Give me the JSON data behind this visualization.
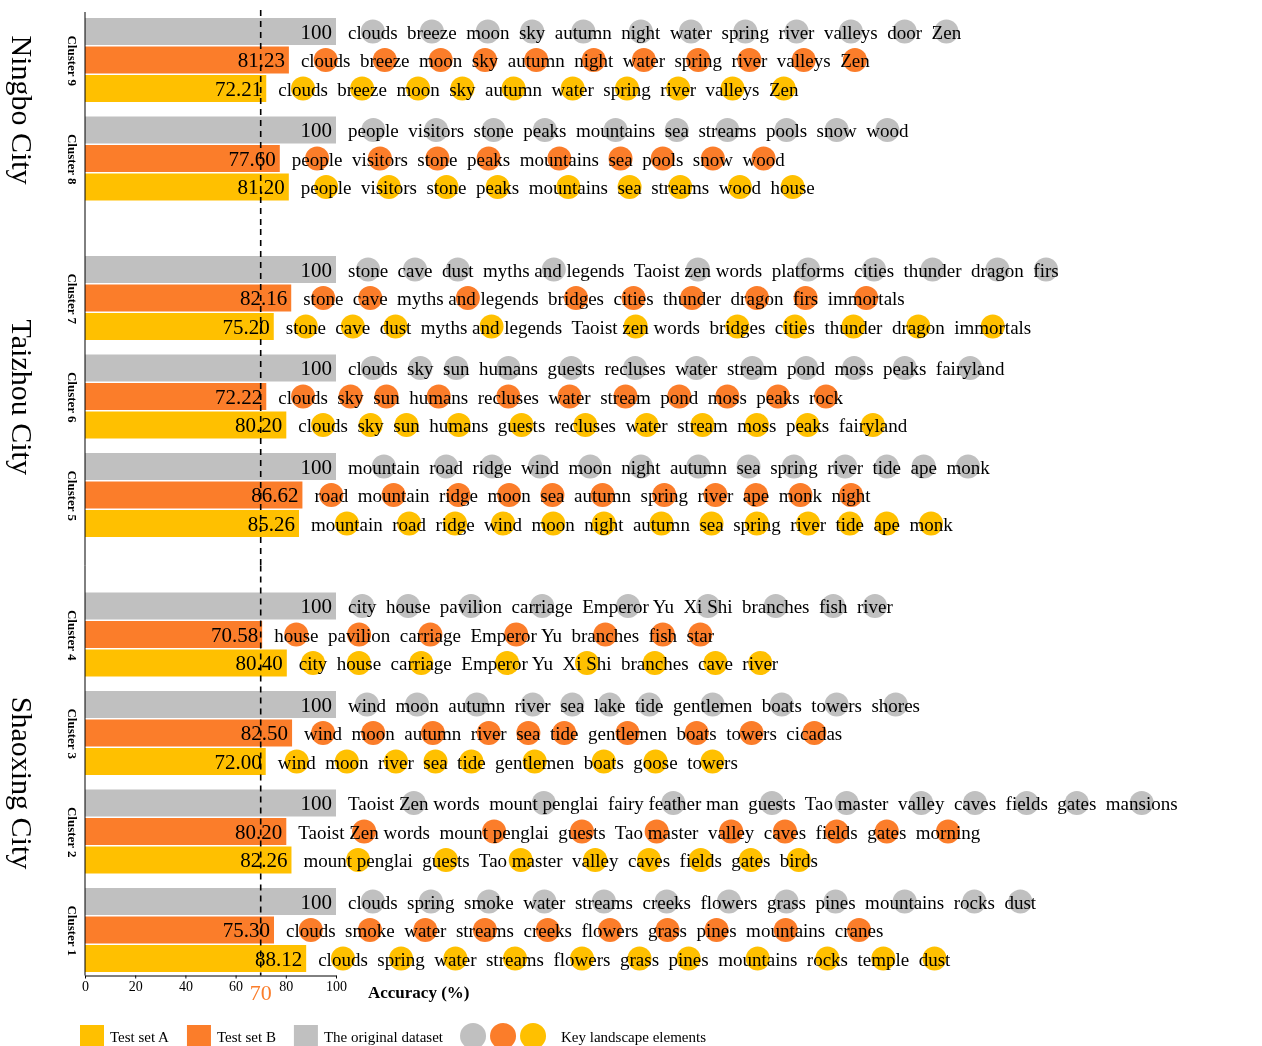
{
  "chart_data": [
    {
      "type": "bar",
      "orientation": "horizontal",
      "title": "Ningbo City",
      "tick_labels": "y",
      "categories": [
        "Cluster 9",
        "Cluster 8"
      ],
      "series": [
        {
          "color": "#ffc000",
          "values": [
            72.21,
            81.2
          ],
          "value_labels": [
            "72.21",
            "81.20"
          ]
        },
        {
          "color": "#fb7d2a",
          "values": [
            81.23,
            77.6
          ],
          "value_labels": [
            "81.23",
            "77.60"
          ]
        },
        {
          "color": "#c0c0c0",
          "values": [
            100,
            100
          ],
          "value_labels": [
            "100",
            "100"
          ]
        }
      ],
      "xlim": [
        0,
        100
      ],
      "grid": false,
      "ref_lines": [
        {
          "axis": "x",
          "value": 70,
          "color": "#000000",
          "line_style": "dashed"
        }
      ],
      "annotations": [
        "clouds  breeze  moon  sky  autumn  night  water  spring  river  valleys  door  Zen",
        "clouds  breeze  moon  sky  autumn  night  water  spring  river  valleys  Zen",
        "clouds  breeze  moon  sky  autumn  water  spring  river  valleys  Zen",
        "people  visitors  stone  peaks  mountains  sea  streams  pools  snow  wood",
        "people  visitors  stone  peaks  mountains  sea  pools  snow  wood",
        "people  visitors  stone  peaks  mountains  sea  streams  wood  house"
      ]
    },
    {
      "type": "bar",
      "orientation": "horizontal",
      "title": "Taizhou City",
      "tick_labels": "y",
      "categories": [
        "Cluster 7",
        "Cluster 6",
        "Cluster 5"
      ],
      "series": [
        {
          "color": "#ffc000",
          "values": [
            75.2,
            80.2,
            85.26
          ],
          "value_labels": [
            "75.20",
            "80.20",
            "85.26"
          ]
        },
        {
          "color": "#fb7d2a",
          "values": [
            82.16,
            72.22,
            86.62
          ],
          "value_labels": [
            "82.16",
            "72.22",
            "86.62"
          ]
        },
        {
          "color": "#c0c0c0",
          "values": [
            100,
            100,
            100
          ],
          "value_labels": [
            "100",
            "100",
            "100"
          ]
        }
      ],
      "xlim": [
        0,
        100
      ],
      "grid": false,
      "ref_lines": [
        {
          "axis": "x",
          "value": 70,
          "color": "#000000",
          "line_style": "dashed"
        }
      ],
      "annotations": [
        "stone  cave  dust  myths and legends  Taoist zen words  platforms  cities  thunder  dragon  firs",
        "stone  cave  myths and legends  bridges  cities  thunder  dragon  firs  immortals",
        "stone  cave  dust  myths and legends  Taoist zen words  bridges  cities  thunder  dragon  immortals",
        "clouds  sky  sun  humans  guests  recluses  water  stream  pond  moss  peaks  fairyland",
        "clouds  sky  sun  humans  recluses  water  stream  pond  moss  peaks  rock",
        "clouds  sky  sun  humans  guests  recluses  water  stream  moss  peaks  fairyland",
        "mountain  road  ridge  wind  moon  night  autumn  sea  spring  river  tide  ape  monk",
        "road  mountain  ridge  moon  sea  autumn  spring  river  ape  monk  night",
        "mountain  road  ridge  wind  moon  night  autumn  sea  spring  river  tide  ape  monk"
      ]
    },
    {
      "type": "bar",
      "orientation": "horizontal",
      "title": "Shaoxing City",
      "xlabel": "Accuracy (%)",
      "categories": [
        "Cluster 4",
        "Cluster 3",
        "Cluster 2",
        "Cluster 1"
      ],
      "series": [
        {
          "name": "Test set A",
          "color": "#ffc000",
          "values": [
            80.4,
            72.0,
            82.26,
            88.12
          ],
          "value_labels": [
            "80.40",
            "72.00",
            "82.26",
            "88.12"
          ]
        },
        {
          "name": "Test set B",
          "color": "#fb7d2a",
          "values": [
            70.58,
            82.5,
            80.2,
            75.3
          ],
          "value_labels": [
            "70.58",
            "82.50",
            "80.20",
            "75.30"
          ]
        },
        {
          "name": "The original dataset",
          "color": "#c0c0c0",
          "values": [
            100,
            100,
            100,
            100
          ],
          "value_labels": [
            "100",
            "100",
            "100",
            "100"
          ]
        }
      ],
      "xlim": [
        0,
        100
      ],
      "xticks": [
        0,
        20,
        40,
        60,
        80,
        100
      ],
      "grid": false,
      "legend": "bottom",
      "ref_lines": [
        {
          "axis": "x",
          "value": 70,
          "label": "70",
          "color": "#000000",
          "line_style": "dashed"
        }
      ],
      "annotations": [
        "city  house  pavilion  carriage  Emperor Yu  Xi Shi  branches  fish  river",
        "house  pavilion  carriage  Emperor Yu  branches  fish  star",
        "city  house  carriage  Emperor Yu  Xi Shi  branches  cave  river",
        "wind  moon  autumn  river  sea  lake  tide  gentlemen  boats  towers  shores",
        "wind  moon  autumn  river  sea  tide  gentlemen  boats  towers  cicadas",
        "wind  moon  river  sea  tide  gentlemen  boats  goose  towers",
        "Taoist Zen words  mount penglai  fairy feather man  guests  Tao master  valley  caves  fields  gates  mansions",
        "Taoist Zen words  mount penglai  guests  Tao master  valley  caves  fields  gates  morning",
        "mount penglai  guests  Tao master  valley  caves  fields  gates  birds",
        "clouds  spring  smoke  water  streams  creeks  flowers  grass  pines  mountains  rocks  dust",
        "clouds  smoke  water  streams  creeks  flowers  grass  pines  mountains  cranes",
        "clouds  spring  water  streams  flowers  grass  pines  mountains  rocks  temple  dust",
        "Key landscape elements"
      ]
    }
  ]
}
